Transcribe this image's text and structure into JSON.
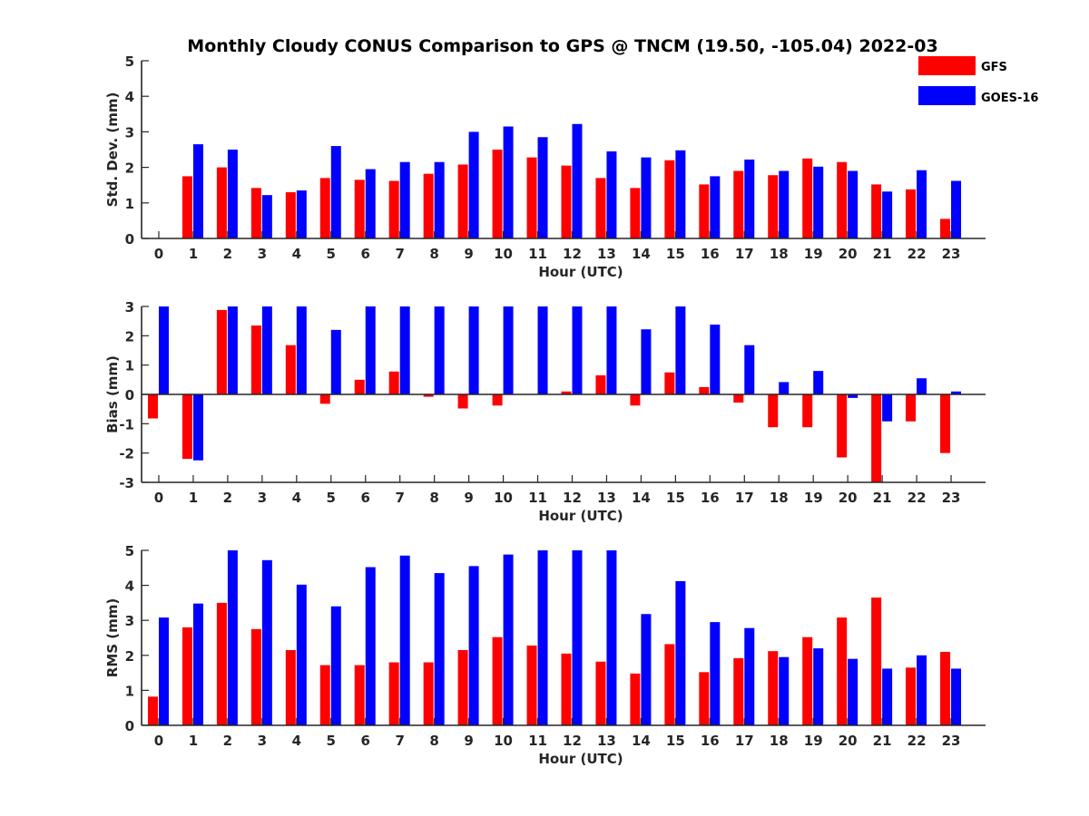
{
  "figure": {
    "title": "Monthly Cloudy CONUS Comparison to GPS @ TNCM (19.50, -105.04) 2022-03"
  },
  "legend": {
    "placement": "top-right",
    "entries": [
      {
        "name": "GFS",
        "color": "#ff0000"
      },
      {
        "name": "GOES-16",
        "color": "#0000ff"
      }
    ]
  },
  "chart_data": [
    {
      "type": "bar",
      "xlabel": "Hour (UTC)",
      "ylabel": "Std. Dev. (mm)",
      "ylim": [
        0,
        5
      ],
      "yticks": [
        "0",
        "1",
        "2",
        "3",
        "4",
        "5"
      ],
      "categories": [
        "0",
        "1",
        "2",
        "3",
        "4",
        "5",
        "6",
        "7",
        "8",
        "9",
        "10",
        "11",
        "12",
        "13",
        "14",
        "15",
        "16",
        "17",
        "18",
        "19",
        "20",
        "21",
        "22",
        "23"
      ],
      "series": [
        {
          "name": "GFS",
          "color": "#ff0000",
          "values": [
            0,
            1.75,
            2.0,
            1.42,
            1.3,
            1.7,
            1.65,
            1.62,
            1.82,
            2.08,
            2.5,
            2.28,
            2.05,
            1.7,
            1.42,
            2.2,
            1.52,
            1.9,
            1.78,
            2.25,
            2.15,
            1.52,
            1.38,
            0.55
          ]
        },
        {
          "name": "GOES-16",
          "color": "#0000ff",
          "values": [
            0,
            2.65,
            2.5,
            1.22,
            1.35,
            2.6,
            1.95,
            2.15,
            2.15,
            3.0,
            3.15,
            2.85,
            3.22,
            2.45,
            2.28,
            2.48,
            1.75,
            2.22,
            1.9,
            2.02,
            1.9,
            1.32,
            1.92,
            1.62
          ]
        }
      ]
    },
    {
      "type": "bar",
      "xlabel": "Hour (UTC)",
      "ylabel": "Bias (mm)",
      "ylim": [
        -3,
        3
      ],
      "yticks": [
        "-3",
        "-2",
        "-1",
        "0",
        "1",
        "2",
        "3"
      ],
      "categories": [
        "0",
        "1",
        "2",
        "3",
        "4",
        "5",
        "6",
        "7",
        "8",
        "9",
        "10",
        "11",
        "12",
        "13",
        "14",
        "15",
        "16",
        "17",
        "18",
        "19",
        "20",
        "21",
        "22",
        "23"
      ],
      "series": [
        {
          "name": "GFS",
          "color": "#ff0000",
          "values": [
            -0.82,
            -2.2,
            2.88,
            2.35,
            1.68,
            -0.32,
            0.5,
            0.78,
            -0.08,
            -0.48,
            -0.38,
            0,
            0.1,
            0.65,
            -0.38,
            0.75,
            0.25,
            -0.28,
            -1.12,
            -1.12,
            -2.15,
            -3.0,
            -0.92,
            -2.0
          ]
        },
        {
          "name": "GOES-16",
          "color": "#0000ff",
          "values": [
            3.0,
            -2.25,
            3.0,
            3.0,
            3.0,
            2.2,
            3.0,
            3.0,
            3.0,
            3.0,
            3.0,
            3.0,
            3.0,
            3.0,
            2.22,
            3.0,
            2.38,
            1.68,
            0.42,
            0.8,
            -0.12,
            -0.92,
            0.55,
            0.1
          ]
        }
      ]
    },
    {
      "type": "bar",
      "xlabel": "Hour (UTC)",
      "ylabel": "RMS (mm)",
      "ylim": [
        0,
        5
      ],
      "yticks": [
        "0",
        "1",
        "2",
        "3",
        "4",
        "5"
      ],
      "categories": [
        "0",
        "1",
        "2",
        "3",
        "4",
        "5",
        "6",
        "7",
        "8",
        "9",
        "10",
        "11",
        "12",
        "13",
        "14",
        "15",
        "16",
        "17",
        "18",
        "19",
        "20",
        "21",
        "22",
        "23"
      ],
      "series": [
        {
          "name": "GFS",
          "color": "#ff0000",
          "values": [
            0.82,
            2.8,
            3.5,
            2.75,
            2.15,
            1.72,
            1.72,
            1.8,
            1.8,
            2.15,
            2.52,
            2.28,
            2.05,
            1.82,
            1.48,
            2.32,
            1.52,
            1.92,
            2.12,
            2.52,
            3.08,
            3.65,
            1.65,
            2.1
          ]
        },
        {
          "name": "GOES-16",
          "color": "#0000ff",
          "values": [
            3.08,
            3.48,
            5.0,
            4.72,
            4.02,
            3.4,
            4.52,
            4.85,
            4.35,
            4.55,
            4.88,
            5.0,
            5.0,
            5.0,
            3.18,
            4.12,
            2.95,
            2.78,
            1.95,
            2.2,
            1.9,
            1.62,
            2.0,
            1.62
          ]
        }
      ]
    }
  ]
}
